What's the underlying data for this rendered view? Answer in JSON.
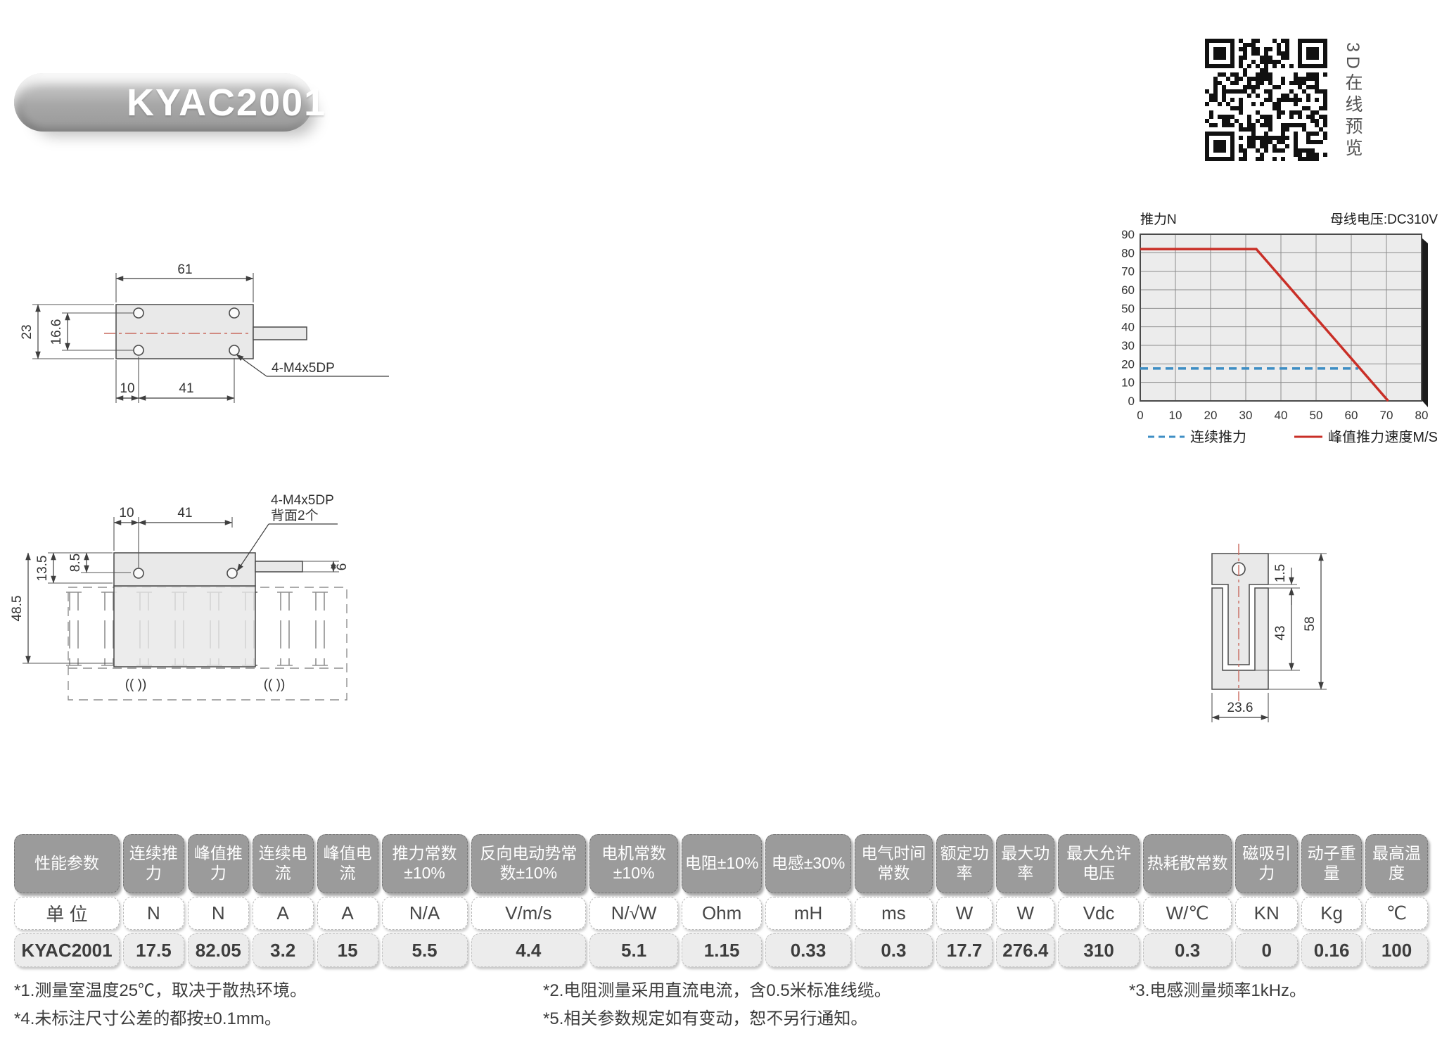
{
  "page": {
    "title_badge": "KYAC2001"
  },
  "qr": {
    "label": "3D在线预览"
  },
  "chart_data": {
    "type": "line",
    "title": "推力N",
    "annotation": "母线电压:DC310V",
    "xlabel": "速度M/S",
    "xlim": [
      0,
      80
    ],
    "ylim": [
      0,
      90
    ],
    "x_ticks": [
      0,
      10,
      20,
      30,
      40,
      50,
      60,
      70,
      80
    ],
    "y_ticks": [
      0,
      10,
      20,
      30,
      40,
      50,
      60,
      70,
      80,
      90
    ],
    "grid": true,
    "legend_position": "bottom",
    "series": [
      {
        "name": "连续推力",
        "color": "#3e8ec4",
        "dash": true,
        "points": [
          [
            0,
            17.5
          ],
          [
            62,
            17.5
          ]
        ]
      },
      {
        "name": "峰值推力",
        "color": "#c92f27",
        "dash": false,
        "points": [
          [
            0,
            82
          ],
          [
            33,
            82
          ],
          [
            70.5,
            0
          ]
        ]
      }
    ]
  },
  "drawing_top": {
    "dims": {
      "d61": "61",
      "d23": "23",
      "d166": "16.6",
      "d10": "10",
      "d41": "41",
      "label": "4-M4x5DP"
    }
  },
  "drawing_front": {
    "dims": {
      "d10": "10",
      "d41": "41",
      "label1": "4-M4x5DP",
      "label2": "背面2个",
      "d135": "13.5",
      "d85": "8.5",
      "d485": "48.5",
      "d6": "6",
      "clip": "(( ))"
    }
  },
  "drawing_section": {
    "dims": {
      "d15": "1.5",
      "d43": "43",
      "d58": "58",
      "d236": "23.6"
    }
  },
  "table": {
    "headers": [
      "性能参数",
      "连续推力",
      "峰值推力",
      "连续电流",
      "峰值电流",
      "推力常数±10%",
      "反向电动势常数±10%",
      "电机常数±10%",
      "电阻±10%",
      "电感±30%",
      "电气时间常数",
      "额定功率",
      "最大功率",
      "最大允许电压",
      "热耗散常数",
      "磁吸引力",
      "动子重量",
      "最高温度"
    ],
    "units": [
      "单 位",
      "N",
      "N",
      "A",
      "A",
      "N/A",
      "V/m/s",
      "N/√W",
      "Ohm",
      "mH",
      "ms",
      "W",
      "W",
      "Vdc",
      "W/℃",
      "KN",
      "Kg",
      "℃"
    ],
    "values": [
      "KYAC2001",
      "17.5",
      "82.05",
      "3.2",
      "15",
      "5.5",
      "4.4",
      "5.1",
      "1.15",
      "0.33",
      "0.3",
      "17.7",
      "276.4",
      "310",
      "0.3",
      "0",
      "0.16",
      "100"
    ]
  },
  "footnotes": [
    "*1.测量室温度25℃，取决于散热环境。",
    "*4.未标注尺寸公差的都按±0.1mm。",
    "*2.电阻测量采用直流电流，含0.5米标准线缆。",
    "*5.相关参数规定如有变动，恕不另行通知。",
    "*3.电感测量频率1kHz。"
  ]
}
